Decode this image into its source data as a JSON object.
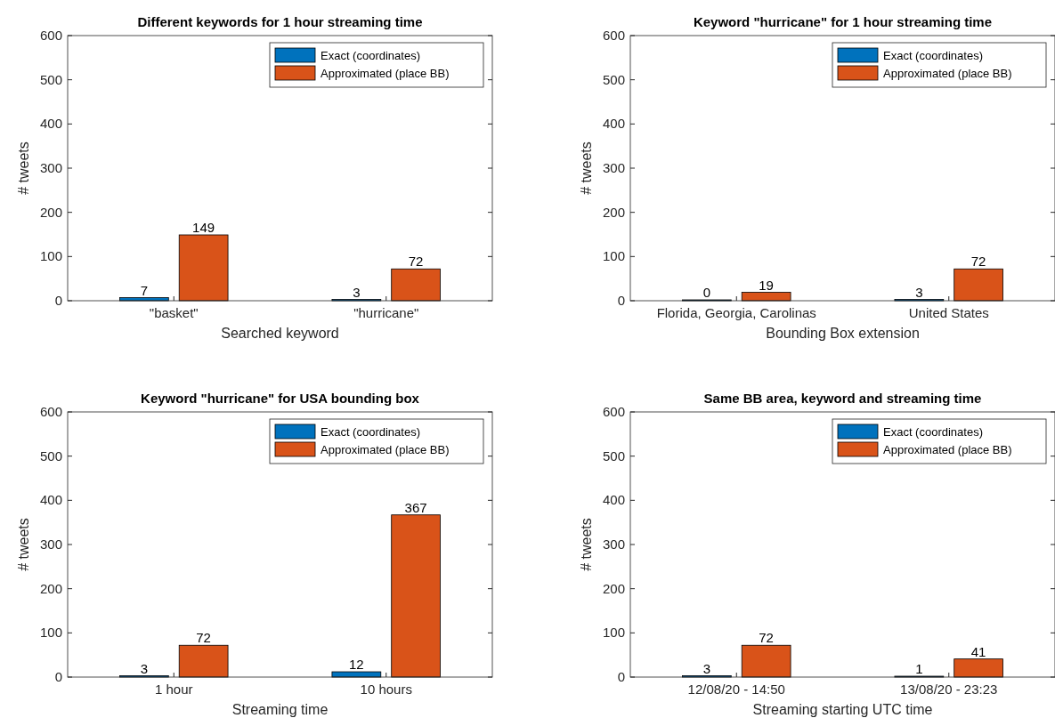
{
  "chart_data": [
    {
      "type": "bar",
      "title": "Different keywords for 1 hour streaming time",
      "xlabel": "Searched keyword",
      "ylabel": "# tweets",
      "categories": [
        "\"basket\"",
        "\"hurricane\""
      ],
      "series": [
        {
          "name": "Exact (coordinates)",
          "color": "#0072bd",
          "values": [
            7,
            3
          ]
        },
        {
          "name": "Approximated (place BB)",
          "color": "#d95319",
          "values": [
            149,
            72
          ]
        }
      ],
      "ylim": [
        0,
        600
      ],
      "yticks": [
        0,
        100,
        200,
        300,
        400,
        500,
        600
      ],
      "grid": false,
      "legend": "top right",
      "data_labels": true
    },
    {
      "type": "bar",
      "title": "Keyword \"hurricane\" for 1 hour streaming time",
      "xlabel": "Bounding Box extension",
      "ylabel": "# tweets",
      "categories": [
        "Florida, Georgia, Carolinas",
        "United States"
      ],
      "series": [
        {
          "name": "Exact (coordinates)",
          "color": "#0072bd",
          "values": [
            0,
            3
          ]
        },
        {
          "name": "Approximated (place BB)",
          "color": "#d95319",
          "values": [
            19,
            72
          ]
        }
      ],
      "ylim": [
        0,
        600
      ],
      "yticks": [
        0,
        100,
        200,
        300,
        400,
        500,
        600
      ],
      "grid": false,
      "legend": "top right",
      "data_labels": true
    },
    {
      "type": "bar",
      "title": "Keyword \"hurricane\" for USA bounding box",
      "xlabel": "Streaming time",
      "ylabel": "# tweets",
      "categories": [
        "1 hour",
        "10 hours"
      ],
      "series": [
        {
          "name": "Exact (coordinates)",
          "color": "#0072bd",
          "values": [
            3,
            12
          ]
        },
        {
          "name": "Approximated (place BB)",
          "color": "#d95319",
          "values": [
            72,
            367
          ]
        }
      ],
      "ylim": [
        0,
        600
      ],
      "yticks": [
        0,
        100,
        200,
        300,
        400,
        500,
        600
      ],
      "grid": false,
      "legend": "top right",
      "data_labels": true
    },
    {
      "type": "bar",
      "title": "Same BB area, keyword and streaming time",
      "xlabel": "Streaming starting UTC time",
      "ylabel": "# tweets",
      "categories": [
        "12/08/20 - 14:50",
        "13/08/20 - 23:23"
      ],
      "series": [
        {
          "name": "Exact (coordinates)",
          "color": "#0072bd",
          "values": [
            3,
            1
          ]
        },
        {
          "name": "Approximated (place BB)",
          "color": "#d95319",
          "values": [
            72,
            41
          ]
        }
      ],
      "ylim": [
        0,
        600
      ],
      "yticks": [
        0,
        100,
        200,
        300,
        400,
        500,
        600
      ],
      "grid": false,
      "legend": "top right",
      "data_labels": true
    }
  ]
}
